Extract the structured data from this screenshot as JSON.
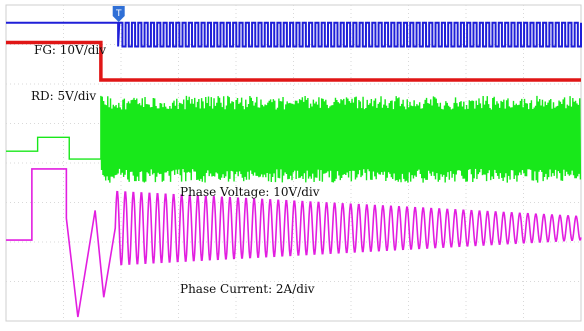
{
  "chart_data": {
    "type": "line",
    "title": "",
    "xlabel": "",
    "ylabel": "",
    "x_units": "divisions",
    "x_range": [
      0,
      10
    ],
    "y_range": [
      0,
      8
    ],
    "grid": true,
    "trigger_marker": {
      "label": "T",
      "x": 1.96,
      "color": "#2f6fd6"
    },
    "series": [
      {
        "name": "FG",
        "label": "FG: 10V/div",
        "color": "#1f1fd8",
        "description_points": {
          "low_before_trigger": 7.55,
          "step_up_at_x": 1.95,
          "pulse_high": 7.55,
          "pulse_low": 6.95,
          "pulse_start_x": 1.97,
          "pulse_period_div": 0.11
        }
      },
      {
        "name": "RD",
        "label": "RD: 5V/div",
        "color": "#e01616",
        "description_points": {
          "high_level": 7.05,
          "fall_at_x": 1.65,
          "low_level": 6.1,
          "low_end_x": 10
        }
      },
      {
        "name": "Phase Voltage",
        "label": "Phase Voltage: 10V/div",
        "color": "#18e81a",
        "description_points": {
          "baseline": 4.3,
          "first_step_x": 0.55,
          "first_step_level": 4.65,
          "second_step_x": 1.1,
          "second_step_level": 4.1,
          "burst_start_x": 1.65,
          "burst_high": 5.7,
          "burst_low": 3.5
        }
      },
      {
        "name": "Phase Current",
        "label": "Phase Current: 2A/div",
        "color": "#e21ee0",
        "description_points": {
          "baseline": 2.05,
          "step_x": 0.45,
          "step_high": 3.85,
          "dip_x": 1.25,
          "dip_low": 0.1,
          "oscillation_start_x": 1.9,
          "oscillation_center": 2.35,
          "initial_amplitude": 0.95,
          "final_amplitude": 0.3,
          "oscillation_period_div": 0.14
        }
      }
    ]
  }
}
